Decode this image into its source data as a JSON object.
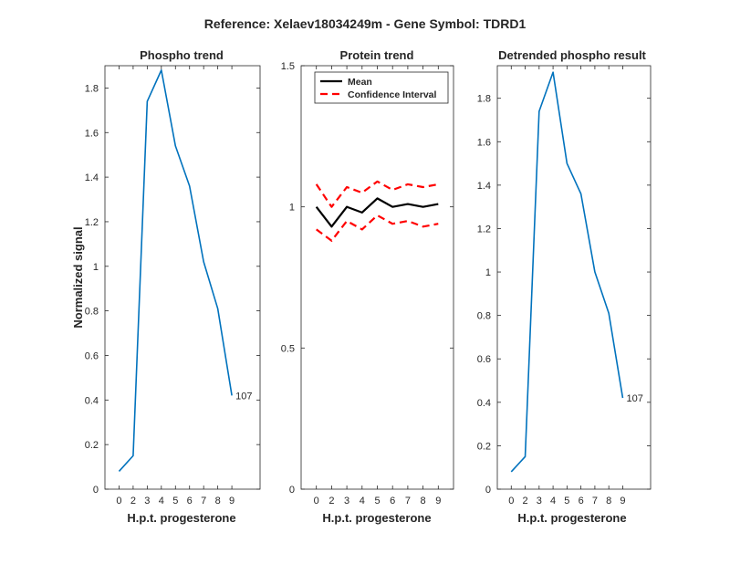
{
  "figure_title": "Reference:  Xelaev18034249m - Gene Symbol:  TDRD1",
  "chart_data": [
    {
      "type": "line",
      "title": "Phospho trend",
      "xlabel": "H.p.t. progesterone",
      "ylabel": "Normalized signal",
      "x_ticks": [
        "0",
        "2",
        "3",
        "4",
        "5",
        "6",
        "7",
        "8",
        "9"
      ],
      "y_ticks": [
        0,
        0.2,
        0.4,
        0.6,
        0.8,
        1,
        1.2,
        1.4,
        1.6,
        1.8
      ],
      "y_tick_labels": [
        "0",
        "0.2",
        "0.4",
        "0.6",
        "0.8",
        "1",
        "1.2",
        "1.4",
        "1.6",
        "1.8"
      ],
      "xlim": [
        -1,
        10
      ],
      "ylim": [
        0,
        1.9
      ],
      "series": [
        {
          "color": "#0072BD",
          "style": "solid",
          "x": [
            0,
            1,
            2,
            3,
            4,
            5,
            6,
            7,
            8
          ],
          "values": [
            0.08,
            0.15,
            1.74,
            1.88,
            1.54,
            1.36,
            1.02,
            0.81,
            0.42
          ]
        }
      ],
      "end_label": "107",
      "grid": false
    },
    {
      "type": "line",
      "title": "Protein trend",
      "xlabel": "H.p.t. progesterone",
      "ylabel": "",
      "x_ticks": [
        "0",
        "2",
        "3",
        "4",
        "5",
        "6",
        "7",
        "8",
        "9"
      ],
      "y_ticks": [
        0,
        0.5,
        1,
        1.5
      ],
      "y_tick_labels": [
        "0",
        "0.5",
        "1",
        "1.5"
      ],
      "xlim": [
        -1,
        9
      ],
      "ylim": [
        0,
        1.5
      ],
      "series": [
        {
          "name": "Mean",
          "color": "#000000",
          "style": "solid",
          "x": [
            0,
            1,
            2,
            3,
            4,
            5,
            6,
            7,
            8
          ],
          "values": [
            1.0,
            0.93,
            1.0,
            0.98,
            1.03,
            1.0,
            1.01,
            1.0,
            1.01
          ]
        },
        {
          "name": "Confidence Interval",
          "color": "#FF0000",
          "style": "dashed",
          "x": [
            0,
            1,
            2,
            3,
            4,
            5,
            6,
            7,
            8
          ],
          "values": [
            1.08,
            1.0,
            1.07,
            1.05,
            1.09,
            1.06,
            1.08,
            1.07,
            1.08
          ]
        },
        {
          "color": "#FF0000",
          "style": "dashed",
          "x": [
            0,
            1,
            2,
            3,
            4,
            5,
            6,
            7,
            8
          ],
          "values": [
            0.92,
            0.88,
            0.95,
            0.92,
            0.97,
            0.94,
            0.95,
            0.93,
            0.94
          ]
        }
      ],
      "legend": {
        "location": "top-right",
        "entries": [
          "Mean",
          "Confidence Interval"
        ]
      },
      "grid": false
    },
    {
      "type": "line",
      "title": "Detrended phospho result",
      "xlabel": "H.p.t. progesterone",
      "ylabel": "",
      "x_ticks": [
        "0",
        "2",
        "3",
        "4",
        "5",
        "6",
        "7",
        "8",
        "9"
      ],
      "y_ticks": [
        0,
        0.2,
        0.4,
        0.6,
        0.8,
        1,
        1.2,
        1.4,
        1.6,
        1.8
      ],
      "y_tick_labels": [
        "0",
        "0.2",
        "0.4",
        "0.6",
        "0.8",
        "1",
        "1.2",
        "1.4",
        "1.6",
        "1.8"
      ],
      "xlim": [
        -1,
        10
      ],
      "ylim": [
        0,
        1.95
      ],
      "series": [
        {
          "color": "#0072BD",
          "style": "solid",
          "x": [
            0,
            1,
            2,
            3,
            4,
            5,
            6,
            7,
            8
          ],
          "values": [
            0.08,
            0.15,
            1.74,
            1.92,
            1.5,
            1.36,
            1.0,
            0.81,
            0.42
          ]
        }
      ],
      "end_label": "107",
      "grid": false
    }
  ]
}
